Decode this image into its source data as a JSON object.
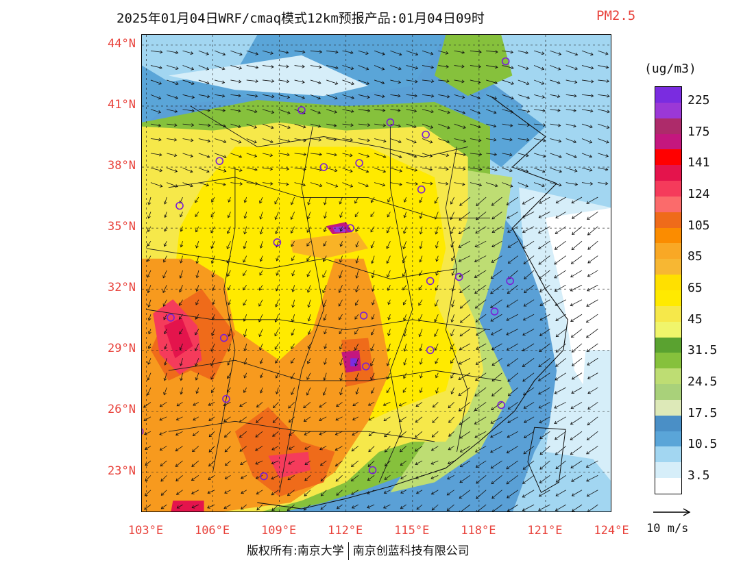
{
  "title": {
    "main": "2025年01月04日WRF/cmaq模式12km预报产品:01月04日09时",
    "variable": "PM2.5"
  },
  "map": {
    "lat_labels": [
      "44°N",
      "41°N",
      "38°N",
      "35°N",
      "32°N",
      "29°N",
      "26°N",
      "23°N"
    ],
    "lon_labels": [
      "103°E",
      "106°E",
      "109°E",
      "112°E",
      "115°E",
      "118°E",
      "121°E",
      "124°E"
    ],
    "lat_range": [
      21.0,
      44.5
    ],
    "lon_range": [
      102.8,
      124.0
    ],
    "field_note_colors": {
      "ocean": "#5aa0d6",
      "clean": "#ffffff",
      "very_low": "#d6eef9",
      "low": "#a2d6f1",
      "low_mid": "#5aa5d8",
      "mid_low": "#e6f2b0",
      "mid_green": "#bedd73",
      "green": "#86c13c",
      "green_dark": "#5aa230",
      "yellow_light": "#f0f56b",
      "yellow": "#f6e84a",
      "yellow_bright": "#ffea00",
      "orange_light": "#f9b326",
      "orange": "#f79a1e",
      "orange_dark": "#ef6b1a",
      "red_light": "#fb6b6b",
      "red": "#f53b5b",
      "crimson": "#e4144c",
      "magenta": "#c4177e",
      "plum": "#ad2b6a",
      "purple": "#9b38d6",
      "violet": "#7a2ce0"
    },
    "city_markers": [
      {
        "lat": 43.2,
        "lon": 119.2
      },
      {
        "lat": 40.8,
        "lon": 110.0
      },
      {
        "lat": 40.2,
        "lon": 114.0
      },
      {
        "lat": 39.6,
        "lon": 115.6
      },
      {
        "lat": 38.3,
        "lon": 106.3
      },
      {
        "lat": 38.0,
        "lon": 111.0
      },
      {
        "lat": 38.2,
        "lon": 112.6
      },
      {
        "lat": 36.9,
        "lon": 115.4
      },
      {
        "lat": 36.1,
        "lon": 104.5
      },
      {
        "lat": 35.0,
        "lon": 112.2
      },
      {
        "lat": 34.3,
        "lon": 108.9
      },
      {
        "lat": 32.4,
        "lon": 115.8
      },
      {
        "lat": 32.6,
        "lon": 117.1
      },
      {
        "lat": 32.4,
        "lon": 119.4
      },
      {
        "lat": 30.9,
        "lon": 118.7
      },
      {
        "lat": 30.6,
        "lon": 104.1
      },
      {
        "lat": 29.6,
        "lon": 106.5
      },
      {
        "lat": 30.7,
        "lon": 112.8
      },
      {
        "lat": 29.0,
        "lon": 115.8
      },
      {
        "lat": 28.2,
        "lon": 112.9
      },
      {
        "lat": 26.6,
        "lon": 106.6
      },
      {
        "lat": 26.3,
        "lon": 119.0
      },
      {
        "lat": 25.0,
        "lon": 102.7
      },
      {
        "lat": 23.1,
        "lon": 113.2
      },
      {
        "lat": 22.8,
        "lon": 108.3
      }
    ]
  },
  "colorbar": {
    "unit": "(ug/m3)",
    "colors": [
      "#7a2ce0",
      "#9b38d6",
      "#ad2b6a",
      "#c4177e",
      "#ff0000",
      "#e4144c",
      "#f53b5b",
      "#fb6b6b",
      "#ef6b1a",
      "#fb8c00",
      "#f9a825",
      "#f7b733",
      "#ffe000",
      "#ffea00",
      "#f6e84a",
      "#f0f56b",
      "#5aa230",
      "#86c13c",
      "#bedd73",
      "#a9d17a",
      "#dde9b8",
      "#4a8fc6",
      "#5aa5d8",
      "#a2d6f1",
      "#d6eef9",
      "#ffffff"
    ],
    "labels": [
      "225",
      "175",
      "141",
      "124",
      "105",
      "85",
      "65",
      "45",
      "31.5",
      "24.5",
      "17.5",
      "10.5",
      "3.5"
    ]
  },
  "wind_reference": {
    "label": "10 m/s"
  },
  "footer": {
    "left": "版权所有:南京大学",
    "right": "南京创蓝科技有限公司"
  }
}
